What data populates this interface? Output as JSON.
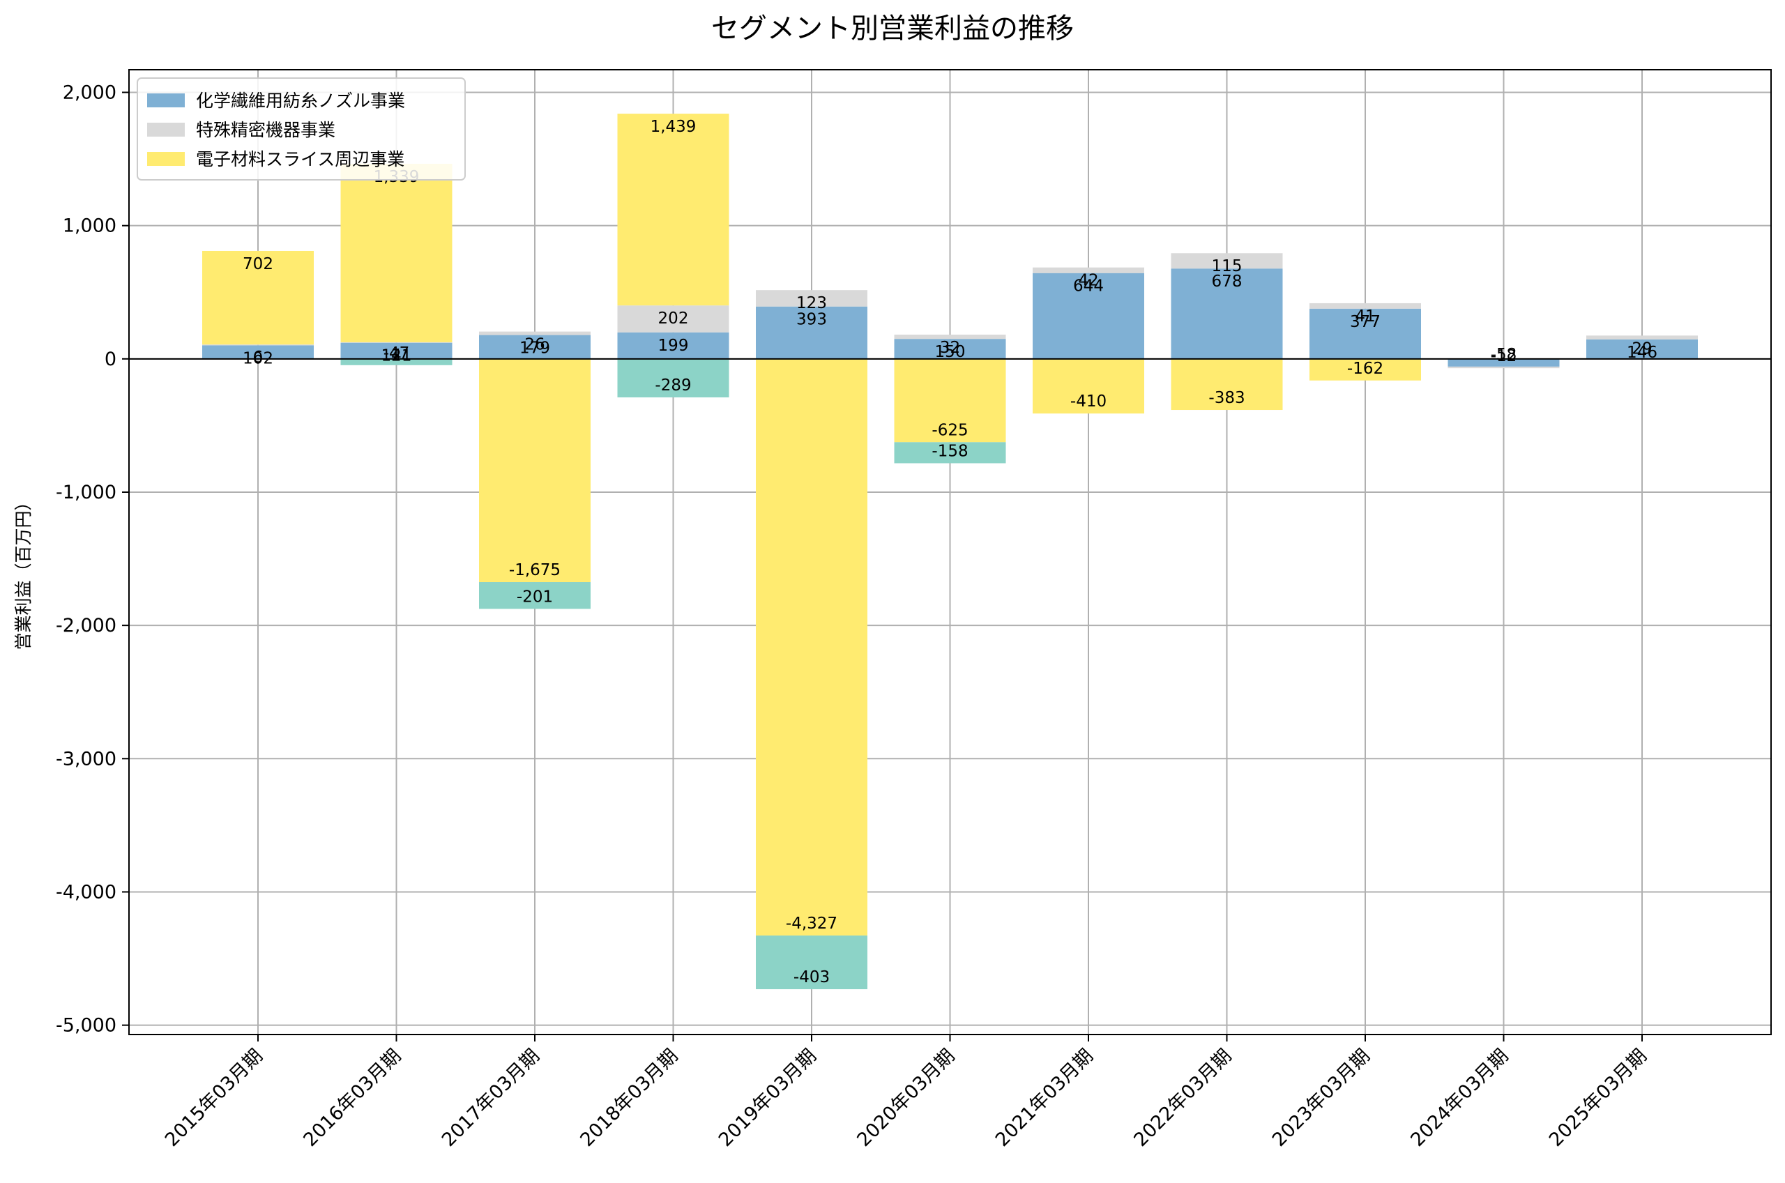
{
  "chart_data": {
    "type": "bar",
    "stacked": true,
    "title": "セグメント別営業利益の推移",
    "xlabel": "",
    "ylabel": "営業利益（百万円）",
    "ylim": [
      -5070,
      2170
    ],
    "yticks": [
      2000,
      1000,
      0,
      -1000,
      -2000,
      -3000,
      -4000,
      -5000
    ],
    "ytick_labels": [
      "2,000",
      "1,000",
      "0",
      "-1,000",
      "-2,000",
      "-3,000",
      "-4,000",
      "-5,000"
    ],
    "grid": true,
    "legend_position": "top-left",
    "categories": [
      "2015年03月期",
      "2016年03月期",
      "2017年03月期",
      "2018年03月期",
      "2019年03月期",
      "2020年03月期",
      "2021年03月期",
      "2022年03月期",
      "2023年03月期",
      "2024年03月期",
      "2025年03月期"
    ],
    "series": [
      {
        "name": "化学繊維用紡糸ノズル事業",
        "color": "#7fb0d4",
        "legend": true,
        "values": [
          102,
          121,
          179,
          199,
          393,
          150,
          644,
          678,
          377,
          -58,
          146
        ]
      },
      {
        "name": "特殊精密機器事業",
        "color": "#d9d9d9",
        "legend": true,
        "values": [
          6,
          4,
          26,
          202,
          123,
          32,
          42,
          115,
          41,
          -12,
          29
        ]
      },
      {
        "name": "電子材料スライス周辺事業",
        "color": "#ffeb70",
        "legend": true,
        "values": [
          702,
          1339,
          -1675,
          1439,
          -4327,
          -625,
          -410,
          -383,
          -162,
          null,
          null
        ]
      },
      {
        "name": "",
        "color": "#8cd3c7",
        "legend": false,
        "values": [
          null,
          -47,
          -201,
          -289,
          -403,
          -158,
          null,
          null,
          null,
          null,
          null
        ]
      }
    ]
  }
}
